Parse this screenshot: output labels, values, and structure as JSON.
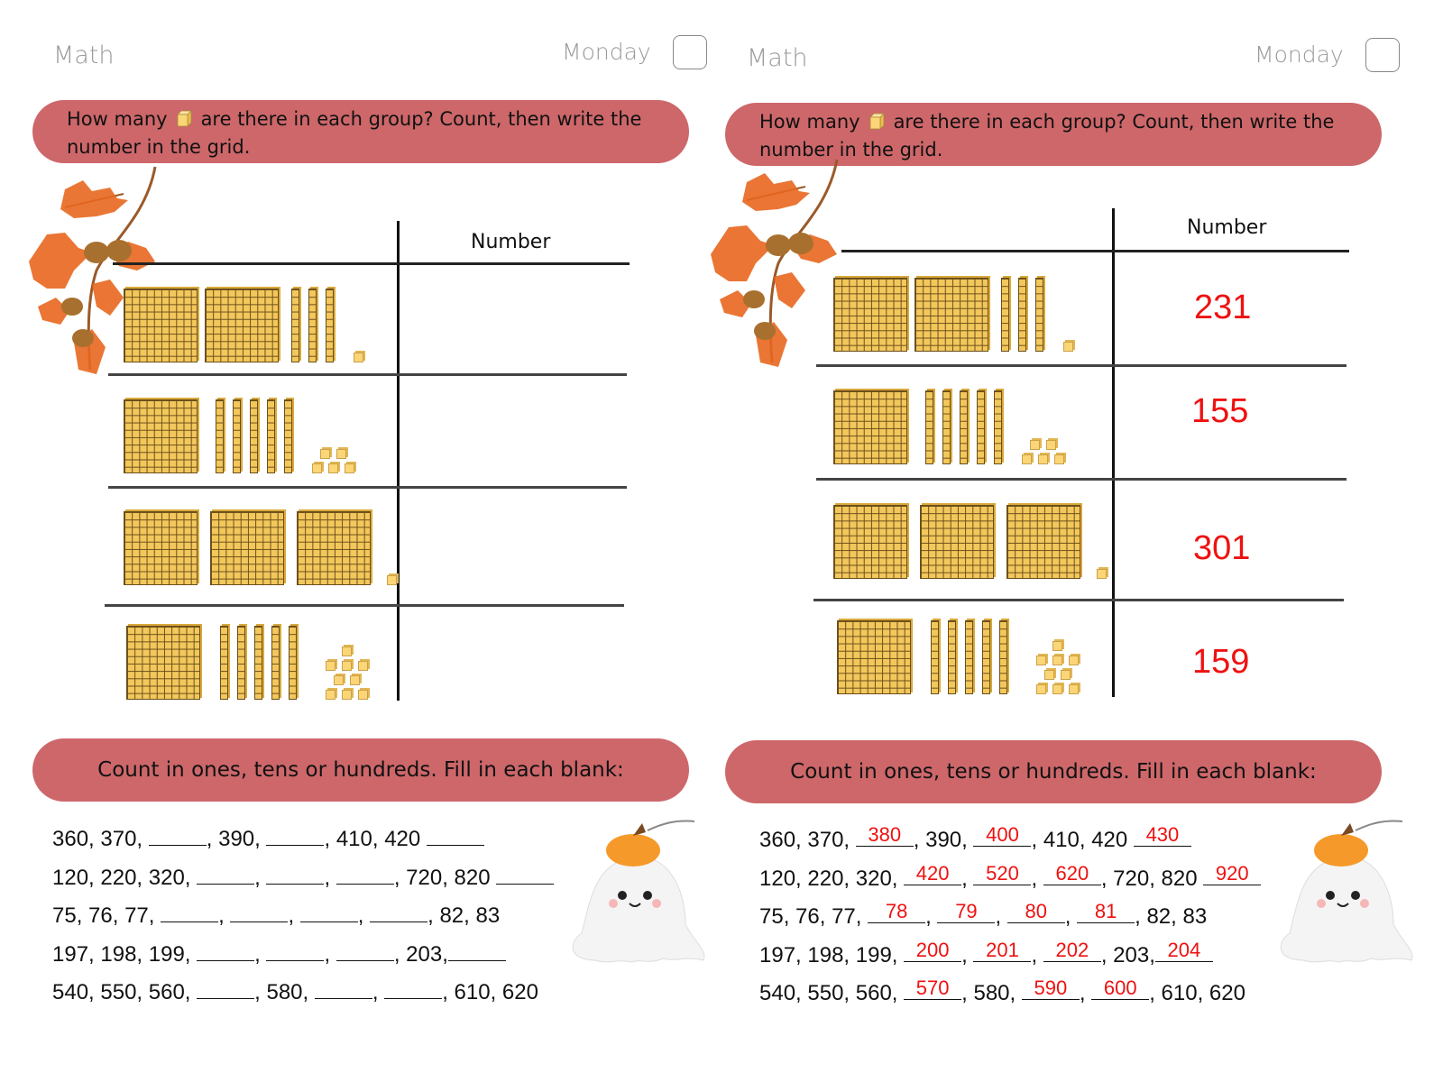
{
  "pages": [
    {
      "id": "worksheet",
      "header": {
        "subject": "Math",
        "day": "Monday"
      },
      "question1": {
        "text_before": "How many",
        "icon": "unit-cube-icon",
        "text_after": "are there in each group? Count, then write the",
        "text_line2": "number in the grid.",
        "column_header": "Number",
        "rows": [
          {
            "hundreds": 2,
            "tens": 3,
            "ones": 1,
            "answer": ""
          },
          {
            "hundreds": 1,
            "tens": 5,
            "ones": 5,
            "answer": ""
          },
          {
            "hundreds": 3,
            "tens": 0,
            "ones": 1,
            "answer": ""
          },
          {
            "hundreds": 1,
            "tens": 5,
            "ones": 9,
            "answer": ""
          }
        ]
      },
      "question2": {
        "title": "Count in ones, tens or hundreds. Fill in each blank:",
        "lines": [
          [
            "360, 370, ",
            {
              "blank": ""
            },
            ", 390, ",
            {
              "blank": ""
            },
            ", 410, 420 ",
            {
              "blank": ""
            }
          ],
          [
            "120, 220, 320, ",
            {
              "blank": ""
            },
            ", ",
            {
              "blank": ""
            },
            ", ",
            {
              "blank": ""
            },
            ", 720, 820 ",
            {
              "blank": ""
            }
          ],
          [
            "75, 76, 77, ",
            {
              "blank": ""
            },
            ", ",
            {
              "blank": ""
            },
            ", ",
            {
              "blank": ""
            },
            ", ",
            {
              "blank": ""
            },
            ", 82, 83"
          ],
          [
            "197, 198, 199, ",
            {
              "blank": ""
            },
            ", ",
            {
              "blank": ""
            },
            ", ",
            {
              "blank": ""
            },
            ", 203,",
            {
              "blank": ""
            }
          ],
          [
            "540, 550, 560, ",
            {
              "blank": ""
            },
            ", 580, ",
            {
              "blank": ""
            },
            ", ",
            {
              "blank": ""
            },
            ", 610, 620"
          ]
        ]
      }
    },
    {
      "id": "answer-key",
      "header": {
        "subject": "Math",
        "day": "Monday"
      },
      "question1": {
        "text_before": "How many",
        "icon": "unit-cube-icon",
        "text_after": "are there in each group? Count, then write the",
        "text_line2": "number in the grid.",
        "column_header": "Number",
        "rows": [
          {
            "hundreds": 2,
            "tens": 3,
            "ones": 1,
            "answer": "231"
          },
          {
            "hundreds": 1,
            "tens": 5,
            "ones": 5,
            "answer": "155"
          },
          {
            "hundreds": 3,
            "tens": 0,
            "ones": 1,
            "answer": "301"
          },
          {
            "hundreds": 1,
            "tens": 5,
            "ones": 9,
            "answer": "159"
          }
        ]
      },
      "question2": {
        "title": "Count in ones, tens or hundreds. Fill in each blank:",
        "lines": [
          [
            "360, 370, ",
            {
              "blank": "380"
            },
            ", 390, ",
            {
              "blank": "400"
            },
            ", 410, 420 ",
            {
              "blank": "430"
            }
          ],
          [
            "120, 220, 320, ",
            {
              "blank": "420"
            },
            ", ",
            {
              "blank": "520"
            },
            ", ",
            {
              "blank": "620"
            },
            ", 720, 820 ",
            {
              "blank": "920"
            }
          ],
          [
            "75, 76, 77, ",
            {
              "blank": "78"
            },
            ", ",
            {
              "blank": "79"
            },
            ", ",
            {
              "blank": "80"
            },
            ", ",
            {
              "blank": "81"
            },
            ", 82, 83"
          ],
          [
            "197, 198, 199, ",
            {
              "blank": "200"
            },
            ", ",
            {
              "blank": "201"
            },
            ", ",
            {
              "blank": "202"
            },
            ", 203,",
            {
              "blank": "204"
            }
          ],
          [
            "540, 550, 560, ",
            {
              "blank": "570"
            },
            ", 580, ",
            {
              "blank": "590"
            },
            ", ",
            {
              "blank": "600"
            },
            ", 610, 620"
          ]
        ]
      }
    }
  ],
  "colors": {
    "banner": "#cd676a",
    "answer": "#ee1111",
    "block": "#f2c75c",
    "header_text": "#999999"
  },
  "decorations": [
    "autumn-oak-leaves-acorns",
    "ghost-with-pumpkin-hat"
  ]
}
